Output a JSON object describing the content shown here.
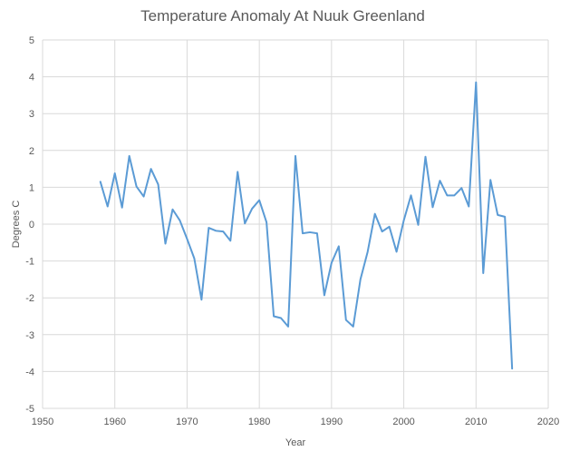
{
  "chart_data": {
    "type": "line",
    "title": "Temperature Anomaly At Nuuk Greenland",
    "xlabel": "Year",
    "ylabel": "Degrees C",
    "xlim": [
      1950,
      2020
    ],
    "ylim": [
      -5,
      5
    ],
    "x_ticks": [
      1950,
      1960,
      1970,
      1980,
      1990,
      2000,
      2010,
      2020
    ],
    "y_ticks": [
      -5,
      -4,
      -3,
      -2,
      -1,
      0,
      1,
      2,
      3,
      4,
      5
    ],
    "grid": true,
    "legend": "none",
    "series": [
      {
        "name": "Temperature Anomaly",
        "color": "#5b9bd5",
        "x": [
          1958,
          1959,
          1960,
          1961,
          1962,
          1963,
          1964,
          1965,
          1966,
          1967,
          1968,
          1969,
          1970,
          1971,
          1972,
          1973,
          1974,
          1975,
          1976,
          1977,
          1978,
          1979,
          1980,
          1981,
          1982,
          1983,
          1984,
          1985,
          1986,
          1987,
          1988,
          1989,
          1990,
          1991,
          1992,
          1993,
          1994,
          1995,
          1996,
          1997,
          1998,
          1999,
          2000,
          2001,
          2002,
          2003,
          2004,
          2005,
          2006,
          2007,
          2008,
          2009,
          2010,
          2011,
          2012,
          2013,
          2014,
          2015
        ],
        "values": [
          1.15,
          0.48,
          1.38,
          0.45,
          1.85,
          1.02,
          0.75,
          1.5,
          1.08,
          -0.53,
          0.4,
          0.1,
          -0.4,
          -0.93,
          -2.05,
          -0.1,
          -0.18,
          -0.2,
          -0.45,
          1.42,
          0.02,
          0.42,
          0.65,
          0.05,
          -2.5,
          -2.55,
          -2.78,
          1.85,
          -0.25,
          -0.22,
          -0.25,
          -1.93,
          -1.05,
          -0.6,
          -2.6,
          -2.78,
          -1.5,
          -0.75,
          0.28,
          -0.2,
          -0.07,
          -0.75,
          0.1,
          0.78,
          -0.02,
          1.83,
          0.46,
          1.18,
          0.78,
          0.78,
          0.98,
          0.48,
          3.85,
          -1.33,
          1.2,
          0.25,
          0.2,
          -3.92
        ]
      }
    ]
  }
}
